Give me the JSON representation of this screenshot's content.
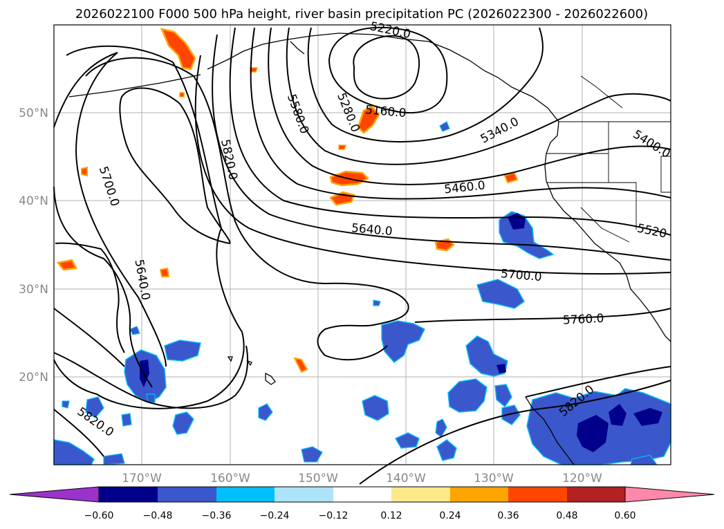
{
  "title": "2026022100 F000 500 hPa height, river basin precipitation PC (2026022300 - 2026022600)",
  "map": {
    "lat_ticks": [
      "50°N",
      "40°N",
      "30°N",
      "20°N"
    ],
    "lon_ticks": [
      "170°W",
      "160°W",
      "150°W",
      "140°W",
      "130°W",
      "120°W"
    ]
  },
  "contour_labels": [
    "5220.0",
    "5160.0",
    "5280.0",
    "5580.0",
    "5820.0",
    "5700.0",
    "5340.0",
    "5400.0",
    "5460.0",
    "5640.0",
    "5520",
    "5640.0",
    "5700.0",
    "5760.0",
    "5820.0",
    "5820.0"
  ],
  "colorbar": {
    "ticks": [
      "−0.60",
      "−0.48",
      "−0.36",
      "−0.24",
      "−0.12",
      "0.12",
      "0.24",
      "0.36",
      "0.48",
      "0.60"
    ],
    "colors": [
      "#9a33cc",
      "#00008b",
      "#3b57cc",
      "#00bfff",
      "#aee4fa",
      "#ffffff",
      "#fce98a",
      "#ffa500",
      "#ff4500",
      "#b22222",
      "#ff88aa"
    ]
  }
}
